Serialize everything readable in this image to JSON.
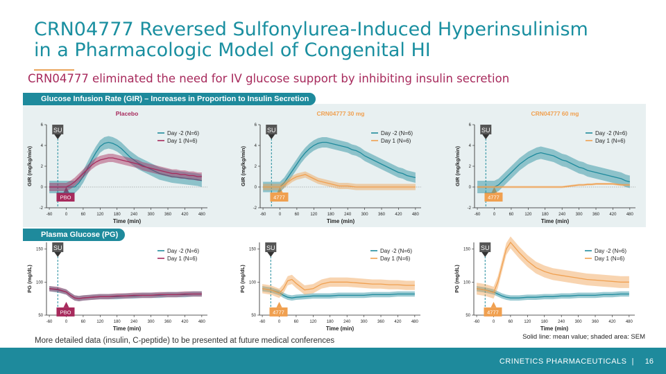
{
  "slide": {
    "title_line1": "CRN04777 Reversed Sulfonylurea-Induced Hyperinsulinism",
    "title_line2": "in a Pharmacologic Model of Congenital HI",
    "subtitle": "CRN04777 eliminated the need for IV glucose support by inhibiting insulin secretion",
    "section_gir": "Glucose Infusion Rate (GIR) – Increases in Proportion to Insulin Secretion",
    "section_pg": "Plasma Glucose (PG)",
    "footnote": "More detailed data (insulin, C-peptide) to be presented at future medical conferences",
    "sem_note": "Solid line: mean value; shaded area: SEM",
    "footer_company": "CRINETICS PHARMACEUTICALS",
    "footer_sep": "|",
    "page_number": "16"
  },
  "colors": {
    "teal": "#1e8a9c",
    "title_teal": "#1a8fa0",
    "magenta": "#a72a5c",
    "orange": "#f0a050",
    "panel_bg": "#e8f0f1"
  },
  "chart_data": [
    {
      "type": "line",
      "title": "Placebo",
      "xlabel": "Time (min)",
      "ylabel": "GIR (mg/kg/min)",
      "xticks": [
        -60,
        0,
        60,
        120,
        180,
        240,
        300,
        360,
        420,
        480
      ],
      "yticks": [
        -2,
        0,
        2,
        4,
        6
      ],
      "xlim": [
        -70,
        500
      ],
      "ylim": [
        -2,
        6
      ],
      "markers": {
        "su": "SU",
        "dose": "PBO"
      },
      "series": [
        {
          "name": "Day -2 (N=6)",
          "x": [
            -60,
            -20,
            0,
            15,
            30,
            45,
            60,
            75,
            90,
            105,
            120,
            135,
            150,
            165,
            180,
            195,
            210,
            225,
            240,
            255,
            270,
            285,
            300,
            315,
            330,
            345,
            360,
            375,
            390,
            405,
            420,
            435,
            450,
            465,
            480
          ],
          "y": [
            0,
            0,
            0,
            0,
            0,
            0.4,
            1.0,
            1.8,
            2.6,
            3.3,
            3.9,
            4.2,
            4.3,
            4.2,
            4.0,
            3.7,
            3.3,
            2.9,
            2.6,
            2.3,
            2.1,
            1.9,
            1.7,
            1.5,
            1.3,
            1.2,
            1.1,
            1.0,
            0.95,
            0.9,
            0.85,
            0.8,
            0.75,
            0.7,
            0.6
          ],
          "sem": 0.6
        },
        {
          "name": "Day 1 (N=6)",
          "x": [
            -60,
            -20,
            0,
            15,
            30,
            45,
            60,
            75,
            90,
            105,
            120,
            135,
            150,
            165,
            180,
            195,
            210,
            225,
            240,
            255,
            270,
            285,
            300,
            315,
            330,
            345,
            360,
            375,
            390,
            405,
            420,
            435,
            450,
            465,
            480
          ],
          "y": [
            0,
            0,
            0,
            0.2,
            0.5,
            0.9,
            1.3,
            1.7,
            2.1,
            2.4,
            2.6,
            2.7,
            2.8,
            2.8,
            2.7,
            2.6,
            2.5,
            2.4,
            2.3,
            2.2,
            2.0,
            1.9,
            1.8,
            1.7,
            1.6,
            1.5,
            1.4,
            1.3,
            1.3,
            1.2,
            1.2,
            1.1,
            1.1,
            1.0,
            1.0
          ],
          "sem": 0.4
        }
      ]
    },
    {
      "type": "line",
      "title": "CRN04777 30 mg",
      "xlabel": "Time (min)",
      "ylabel": "GIR (mg/kg/min)",
      "xticks": [
        -60,
        0,
        60,
        120,
        180,
        240,
        300,
        360,
        420,
        480
      ],
      "yticks": [
        -2,
        0,
        2,
        4,
        6
      ],
      "xlim": [
        -70,
        500
      ],
      "ylim": [
        -2,
        6
      ],
      "markers": {
        "su": "SU",
        "dose": "4777"
      },
      "series": [
        {
          "name": "Day -2 (N=6)",
          "x": [
            -60,
            -20,
            0,
            15,
            30,
            45,
            60,
            75,
            90,
            105,
            120,
            135,
            150,
            165,
            180,
            195,
            210,
            225,
            240,
            255,
            270,
            285,
            300,
            315,
            330,
            345,
            360,
            375,
            390,
            405,
            420,
            435,
            450,
            465,
            480
          ],
          "y": [
            0,
            0,
            0,
            0.4,
            1.0,
            1.6,
            2.2,
            2.8,
            3.3,
            3.7,
            4.0,
            4.2,
            4.3,
            4.3,
            4.2,
            4.1,
            4.0,
            3.9,
            3.8,
            3.6,
            3.5,
            3.3,
            3.0,
            2.8,
            2.6,
            2.4,
            2.2,
            2.0,
            1.8,
            1.6,
            1.4,
            1.3,
            1.1,
            1.0,
            0.9
          ],
          "sem": 0.5
        },
        {
          "name": "Day 1 (N=6)",
          "x": [
            -60,
            -20,
            0,
            15,
            30,
            45,
            60,
            75,
            90,
            105,
            120,
            135,
            150,
            165,
            180,
            195,
            210,
            225,
            240,
            255,
            270,
            285,
            300,
            315,
            330,
            345,
            360,
            375,
            390,
            405,
            420,
            435,
            450,
            465,
            480
          ],
          "y": [
            0,
            0,
            0,
            0.2,
            0.5,
            0.8,
            1.0,
            1.1,
            1.2,
            1.0,
            0.8,
            0.6,
            0.5,
            0.4,
            0.3,
            0.2,
            0.1,
            0.1,
            0.1,
            0.05,
            0,
            0,
            0,
            0,
            0,
            0,
            0,
            0,
            0,
            0,
            0,
            0,
            0,
            0,
            0
          ],
          "sem": 0.3
        }
      ]
    },
    {
      "type": "line",
      "title": "CRN04777 60 mg",
      "xlabel": "Time (min)",
      "ylabel": "GIR (mg/kg/min)",
      "xticks": [
        -60,
        0,
        60,
        120,
        180,
        240,
        300,
        360,
        420,
        480
      ],
      "yticks": [
        -2,
        0,
        2,
        4,
        6
      ],
      "xlim": [
        -70,
        500
      ],
      "ylim": [
        -2,
        6
      ],
      "markers": {
        "su": "SU",
        "dose": "4777"
      },
      "series": [
        {
          "name": "Day -2 (N=6)",
          "x": [
            -60,
            -20,
            0,
            15,
            30,
            45,
            60,
            75,
            90,
            105,
            120,
            135,
            150,
            165,
            180,
            195,
            210,
            225,
            240,
            255,
            270,
            285,
            300,
            315,
            330,
            345,
            360,
            375,
            390,
            405,
            420,
            435,
            450,
            465,
            480
          ],
          "y": [
            0,
            0,
            0,
            0.2,
            0.6,
            1.0,
            1.4,
            1.8,
            2.2,
            2.5,
            2.8,
            3.0,
            3.2,
            3.3,
            3.2,
            3.1,
            3.0,
            2.8,
            2.6,
            2.5,
            2.3,
            2.1,
            1.9,
            1.8,
            1.6,
            1.5,
            1.4,
            1.3,
            1.2,
            1.1,
            1.0,
            0.9,
            0.8,
            0.6,
            0.5
          ],
          "sem": 0.6
        },
        {
          "name": "Day 1 (N=6)",
          "x": [
            -60,
            -20,
            0,
            15,
            30,
            45,
            60,
            75,
            90,
            105,
            120,
            135,
            150,
            165,
            180,
            195,
            210,
            225,
            240,
            255,
            270,
            285,
            300,
            315,
            330,
            345,
            360,
            375,
            390,
            405,
            420,
            435,
            450,
            465,
            480
          ],
          "y": [
            0,
            0,
            0,
            0,
            0,
            0,
            0,
            0,
            0,
            0,
            0,
            0,
            0,
            0,
            0,
            0,
            0,
            0,
            0,
            0.05,
            0.1,
            0.15,
            0.2,
            0.2,
            0.25,
            0.25,
            0.3,
            0.3,
            0.3,
            0.3,
            0.3,
            0.25,
            0.2,
            0.2,
            0.2
          ],
          "sem": 0.1
        }
      ]
    },
    {
      "type": "line",
      "title": "",
      "xlabel": "Time (min)",
      "ylabel": "PG (mg/dL)",
      "xticks": [
        -60,
        0,
        60,
        120,
        180,
        240,
        300,
        360,
        420,
        480
      ],
      "yticks": [
        50,
        100,
        150
      ],
      "xlim": [
        -70,
        500
      ],
      "ylim": [
        50,
        160
      ],
      "markers": {
        "su": "SU",
        "dose": "PBO"
      },
      "series": [
        {
          "name": "Day -2 (N=6)",
          "x": [
            -60,
            -30,
            0,
            15,
            30,
            45,
            60,
            90,
            120,
            150,
            180,
            210,
            240,
            270,
            300,
            330,
            360,
            390,
            420,
            450,
            480
          ],
          "y": [
            90,
            88,
            85,
            80,
            76,
            75,
            76,
            77,
            78,
            78,
            78,
            79,
            79,
            80,
            80,
            80,
            81,
            81,
            81,
            82,
            82
          ],
          "sem": 4
        },
        {
          "name": "Day 1 (N=6)",
          "x": [
            -60,
            -30,
            0,
            15,
            30,
            45,
            60,
            90,
            120,
            150,
            180,
            210,
            240,
            270,
            300,
            330,
            360,
            390,
            420,
            450,
            480
          ],
          "y": [
            90,
            89,
            85,
            80,
            76,
            75,
            76,
            77,
            78,
            78,
            79,
            79,
            80,
            80,
            80,
            81,
            81,
            81,
            82,
            82,
            82
          ],
          "sem": 4
        }
      ]
    },
    {
      "type": "line",
      "title": "",
      "xlabel": "Time (min)",
      "ylabel": "PG (mg/dL)",
      "xticks": [
        -60,
        0,
        60,
        120,
        180,
        240,
        300,
        360,
        420,
        480
      ],
      "yticks": [
        50,
        100,
        150
      ],
      "xlim": [
        -70,
        500
      ],
      "ylim": [
        50,
        160
      ],
      "markers": {
        "su": "SU",
        "dose": "4777"
      },
      "series": [
        {
          "name": "Day -2 (N=6)",
          "x": [
            -60,
            -30,
            0,
            15,
            30,
            45,
            60,
            90,
            120,
            150,
            180,
            210,
            240,
            270,
            300,
            330,
            360,
            390,
            420,
            450,
            480
          ],
          "y": [
            90,
            88,
            84,
            80,
            77,
            76,
            77,
            78,
            79,
            79,
            79,
            80,
            80,
            80,
            80,
            81,
            81,
            81,
            82,
            82,
            82
          ],
          "sem": 4
        },
        {
          "name": "Day 1 (N=6)",
          "x": [
            -60,
            -30,
            0,
            15,
            30,
            45,
            60,
            90,
            120,
            150,
            180,
            210,
            240,
            270,
            300,
            330,
            360,
            390,
            420,
            450,
            480
          ],
          "y": [
            90,
            88,
            83,
            90,
            102,
            104,
            98,
            88,
            90,
            97,
            100,
            100,
            100,
            99,
            98,
            97,
            97,
            96,
            96,
            95,
            95
          ],
          "sem": 7
        }
      ]
    },
    {
      "type": "line",
      "title": "",
      "xlabel": "Time (min)",
      "ylabel": "PG (mg/dL)",
      "xticks": [
        -60,
        0,
        60,
        120,
        180,
        240,
        300,
        360,
        420,
        480
      ],
      "yticks": [
        50,
        100,
        150
      ],
      "xlim": [
        -70,
        500
      ],
      "ylim": [
        50,
        160
      ],
      "markers": {
        "su": "SU",
        "dose": "4777"
      },
      "series": [
        {
          "name": "Day -2 (N=6)",
          "x": [
            -60,
            -30,
            0,
            15,
            30,
            45,
            60,
            90,
            120,
            150,
            180,
            210,
            240,
            270,
            300,
            330,
            360,
            390,
            420,
            450,
            480
          ],
          "y": [
            90,
            88,
            85,
            82,
            79,
            77,
            76,
            76,
            77,
            77,
            78,
            78,
            79,
            79,
            80,
            80,
            80,
            81,
            81,
            82,
            82
          ],
          "sem": 4
        },
        {
          "name": "Day 1 (N=6)",
          "x": [
            -60,
            -30,
            0,
            15,
            30,
            45,
            60,
            90,
            120,
            150,
            180,
            210,
            240,
            270,
            300,
            330,
            360,
            390,
            420,
            450,
            480
          ],
          "y": [
            90,
            88,
            84,
            100,
            125,
            150,
            160,
            145,
            132,
            122,
            116,
            112,
            110,
            108,
            106,
            104,
            103,
            102,
            101,
            100,
            100
          ],
          "sem": 9
        }
      ]
    }
  ]
}
